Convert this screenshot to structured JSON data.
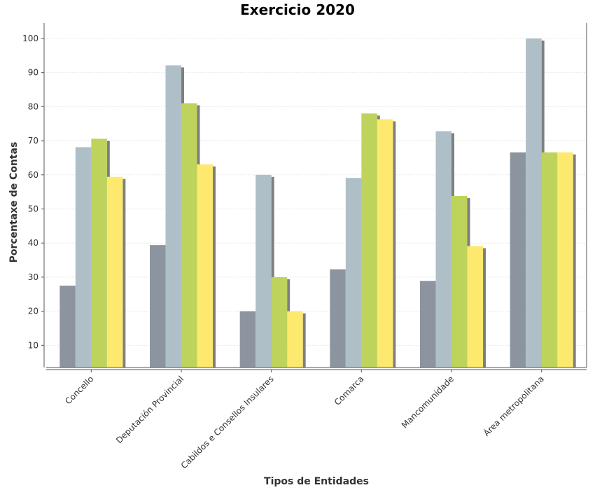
{
  "chart_data": {
    "type": "bar",
    "title": "Exercicio 2020",
    "xlabel": "Tipos de Entidades",
    "ylabel": "Porcentaxe de Contas",
    "ylim": [
      3.5,
      104.5
    ],
    "yticks": [
      10,
      20,
      30,
      40,
      50,
      60,
      70,
      80,
      90,
      100
    ],
    "grid": true,
    "categories": [
      "Concello",
      "Deputación Provincial",
      "Cabildos e Consellos Insulares",
      "Comarca",
      "Mancomunidade",
      "Área metropolitana"
    ],
    "series": [
      {
        "color": "#8c959f",
        "values": [
          27.5,
          39.4,
          20.0,
          32.3,
          28.9,
          66.6
        ]
      },
      {
        "color": "#aebfc8",
        "values": [
          68.1,
          92.1,
          60.0,
          59.1,
          72.8,
          100.0
        ]
      },
      {
        "color": "#bed35c",
        "values": [
          70.6,
          81.0,
          30.0,
          78.0,
          53.8,
          66.6
        ]
      },
      {
        "color": "#fde96e",
        "values": [
          59.4,
          63.1,
          20.0,
          76.3,
          39.1,
          66.6
        ]
      }
    ],
    "shadow_color": "#7f7f7f"
  }
}
